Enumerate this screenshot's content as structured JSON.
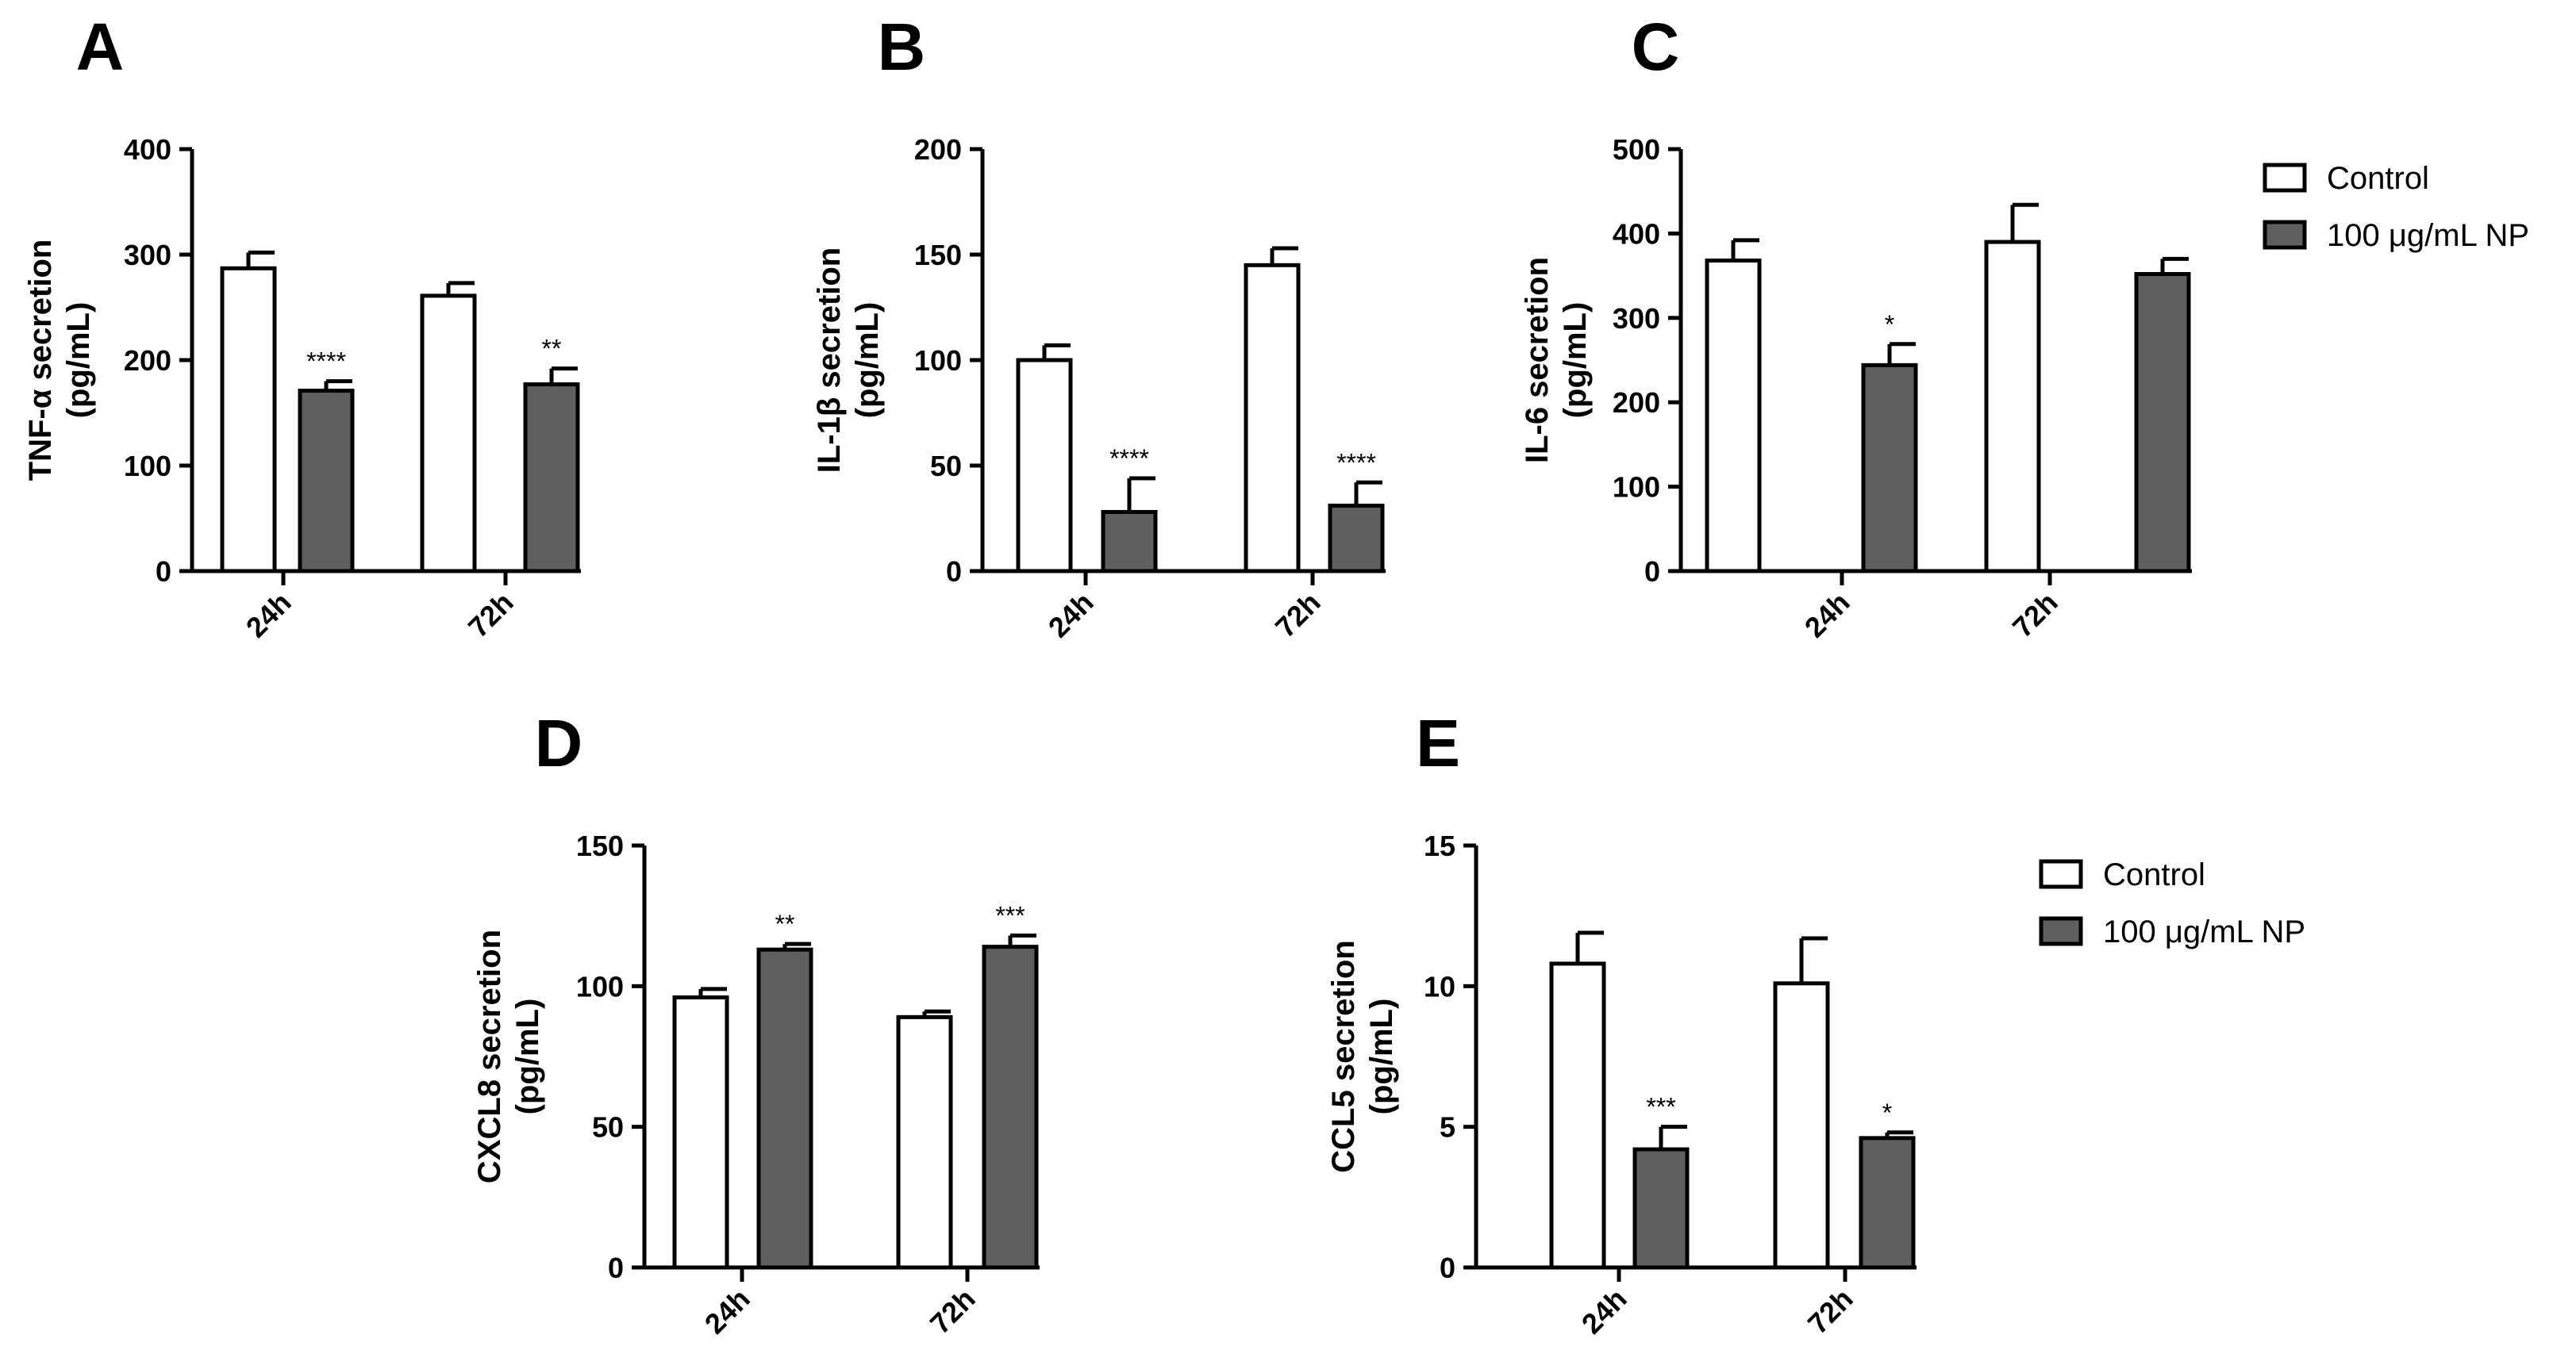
{
  "legend": [
    {
      "label": "Control",
      "color": "#ffffff"
    },
    {
      "label": "100 μg/mL NP",
      "color": "#5f5f5f"
    }
  ],
  "chart_data": [
    {
      "type": "bar",
      "panel": "A",
      "title": "",
      "ylabel_line1": "TNF-α secretion",
      "ylabel_line2": "(pg/mL)",
      "ylim": [
        0,
        400
      ],
      "yticks": [
        0,
        100,
        200,
        300,
        400
      ],
      "categories": [
        "24h",
        "72h"
      ],
      "series": [
        {
          "name": "Control",
          "values": [
            287,
            261
          ],
          "errors": [
            15,
            12
          ]
        },
        {
          "name": "100 μg/mL NP",
          "values": [
            171,
            177
          ],
          "errors": [
            9,
            15
          ]
        }
      ],
      "significance": [
        "****",
        "**"
      ]
    },
    {
      "type": "bar",
      "panel": "B",
      "title": "",
      "ylabel_line1": "IL-1β secretion",
      "ylabel_line2": "(pg/mL)",
      "ylim": [
        0,
        200
      ],
      "yticks": [
        0,
        50,
        100,
        150,
        200
      ],
      "categories": [
        "24h",
        "72h"
      ],
      "series": [
        {
          "name": "Control",
          "values": [
            100,
            145
          ],
          "errors": [
            7,
            8
          ]
        },
        {
          "name": "100 μg/mL NP",
          "values": [
            28,
            31
          ],
          "errors": [
            16,
            11
          ]
        }
      ],
      "significance": [
        "****",
        "****"
      ]
    },
    {
      "type": "bar",
      "panel": "C",
      "title": "",
      "ylabel_line1": "IL-6 secretion",
      "ylabel_line2": "(pg/mL)",
      "ylim": [
        0,
        500
      ],
      "yticks": [
        0,
        100,
        200,
        300,
        400,
        500
      ],
      "categories": [
        "24h",
        "72h"
      ],
      "series": [
        {
          "name": "Control",
          "values": [
            368,
            390
          ],
          "errors": [
            24,
            44
          ]
        },
        {
          "name": "100 μg/mL NP",
          "values": [
            244,
            352
          ],
          "errors": [
            25,
            18
          ]
        }
      ],
      "significance": [
        "*",
        ""
      ]
    },
    {
      "type": "bar",
      "panel": "D",
      "title": "",
      "ylabel_line1": "CXCL8 secretion",
      "ylabel_line2": "(pg/mL)",
      "ylim": [
        0,
        150
      ],
      "yticks": [
        0,
        50,
        100,
        150
      ],
      "categories": [
        "24h",
        "72h"
      ],
      "series": [
        {
          "name": "Control",
          "values": [
            96,
            89
          ],
          "errors": [
            3,
            2
          ]
        },
        {
          "name": "100 μg/mL NP",
          "values": [
            113,
            114
          ],
          "errors": [
            2,
            4
          ]
        }
      ],
      "significance": [
        "**",
        "***"
      ]
    },
    {
      "type": "bar",
      "panel": "E",
      "title": "",
      "ylabel_line1": "CCL5 secretion",
      "ylabel_line2": "(pg/mL)",
      "ylim": [
        0,
        15
      ],
      "yticks": [
        0,
        5,
        10,
        15
      ],
      "categories": [
        "24h",
        "72h"
      ],
      "series": [
        {
          "name": "Control",
          "values": [
            10.8,
            10.1
          ],
          "errors": [
            1.1,
            1.6
          ]
        },
        {
          "name": "100 μg/mL NP",
          "values": [
            4.2,
            4.6
          ],
          "errors": [
            0.8,
            0.2
          ]
        }
      ],
      "significance": [
        "***",
        "*"
      ]
    }
  ]
}
